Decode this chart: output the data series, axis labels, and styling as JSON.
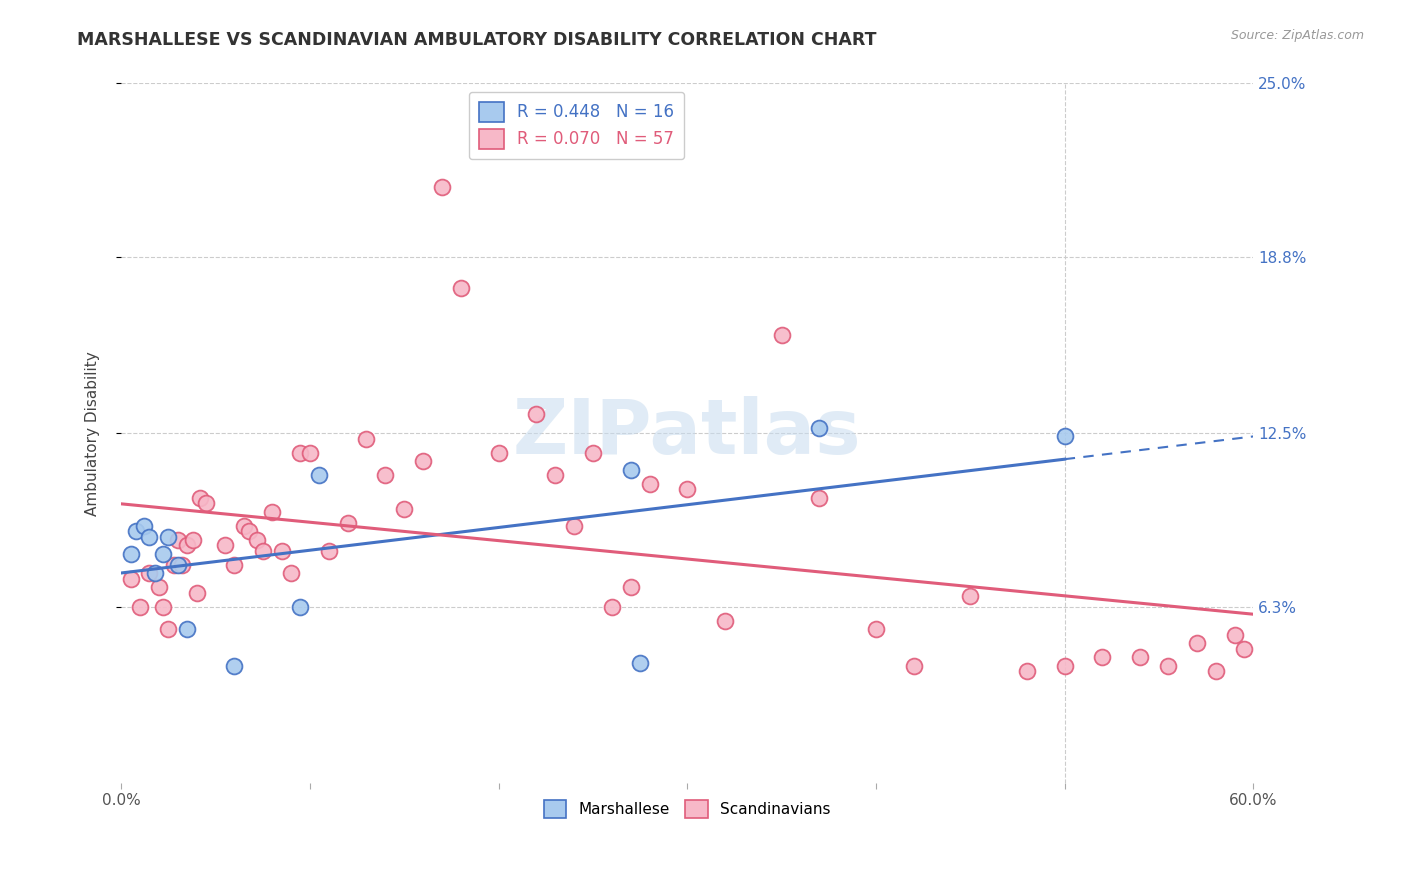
{
  "title": "MARSHALLESE VS SCANDINAVIAN AMBULATORY DISABILITY CORRELATION CHART",
  "source": "Source: ZipAtlas.com",
  "ylabel": "Ambulatory Disability",
  "x_min": 0.0,
  "x_max": 0.6,
  "y_min": 0.0,
  "y_max": 0.25,
  "y_ticks": [
    0.063,
    0.125,
    0.188,
    0.25
  ],
  "y_tick_labels": [
    "6.3%",
    "12.5%",
    "18.8%",
    "25.0%"
  ],
  "x_ticks": [
    0.0,
    0.1,
    0.2,
    0.3,
    0.4,
    0.5,
    0.6
  ],
  "x_tick_labels": [
    "0.0%",
    "",
    "",
    "",
    "",
    "",
    "60.0%"
  ],
  "marshallese_R": 0.448,
  "marshallese_N": 16,
  "scandinavian_R": 0.07,
  "scandinavian_N": 57,
  "marshallese_color": "#A8CAEE",
  "scandinavian_color": "#F7B8C8",
  "marshallese_line_color": "#4472C4",
  "scandinavian_line_color": "#E05C7A",
  "background_color": "#FFFFFF",
  "grid_color": "#CCCCCC",
  "watermark": "ZIPatlas",
  "marshallese_x": [
    0.005,
    0.008,
    0.012,
    0.015,
    0.018,
    0.022,
    0.025,
    0.03,
    0.035,
    0.06,
    0.095,
    0.105,
    0.27,
    0.275,
    0.37,
    0.5
  ],
  "marshallese_y": [
    0.082,
    0.09,
    0.092,
    0.088,
    0.075,
    0.082,
    0.088,
    0.078,
    0.055,
    0.042,
    0.063,
    0.11,
    0.112,
    0.043,
    0.127,
    0.124
  ],
  "scandinavian_x": [
    0.005,
    0.01,
    0.015,
    0.02,
    0.022,
    0.025,
    0.028,
    0.03,
    0.032,
    0.035,
    0.038,
    0.04,
    0.042,
    0.045,
    0.055,
    0.06,
    0.065,
    0.068,
    0.072,
    0.075,
    0.08,
    0.085,
    0.09,
    0.095,
    0.1,
    0.11,
    0.12,
    0.13,
    0.14,
    0.15,
    0.16,
    0.17,
    0.18,
    0.2,
    0.22,
    0.23,
    0.24,
    0.25,
    0.26,
    0.27,
    0.28,
    0.3,
    0.32,
    0.35,
    0.37,
    0.4,
    0.42,
    0.45,
    0.48,
    0.5,
    0.52,
    0.54,
    0.555,
    0.57,
    0.58,
    0.59,
    0.595
  ],
  "scandinavian_y": [
    0.073,
    0.063,
    0.075,
    0.07,
    0.063,
    0.055,
    0.078,
    0.087,
    0.078,
    0.085,
    0.087,
    0.068,
    0.102,
    0.1,
    0.085,
    0.078,
    0.092,
    0.09,
    0.087,
    0.083,
    0.097,
    0.083,
    0.075,
    0.118,
    0.118,
    0.083,
    0.093,
    0.123,
    0.11,
    0.098,
    0.115,
    0.213,
    0.177,
    0.118,
    0.132,
    0.11,
    0.092,
    0.118,
    0.063,
    0.07,
    0.107,
    0.105,
    0.058,
    0.16,
    0.102,
    0.055,
    0.042,
    0.067,
    0.04,
    0.042,
    0.045,
    0.045,
    0.042,
    0.05,
    0.04,
    0.053,
    0.048
  ]
}
